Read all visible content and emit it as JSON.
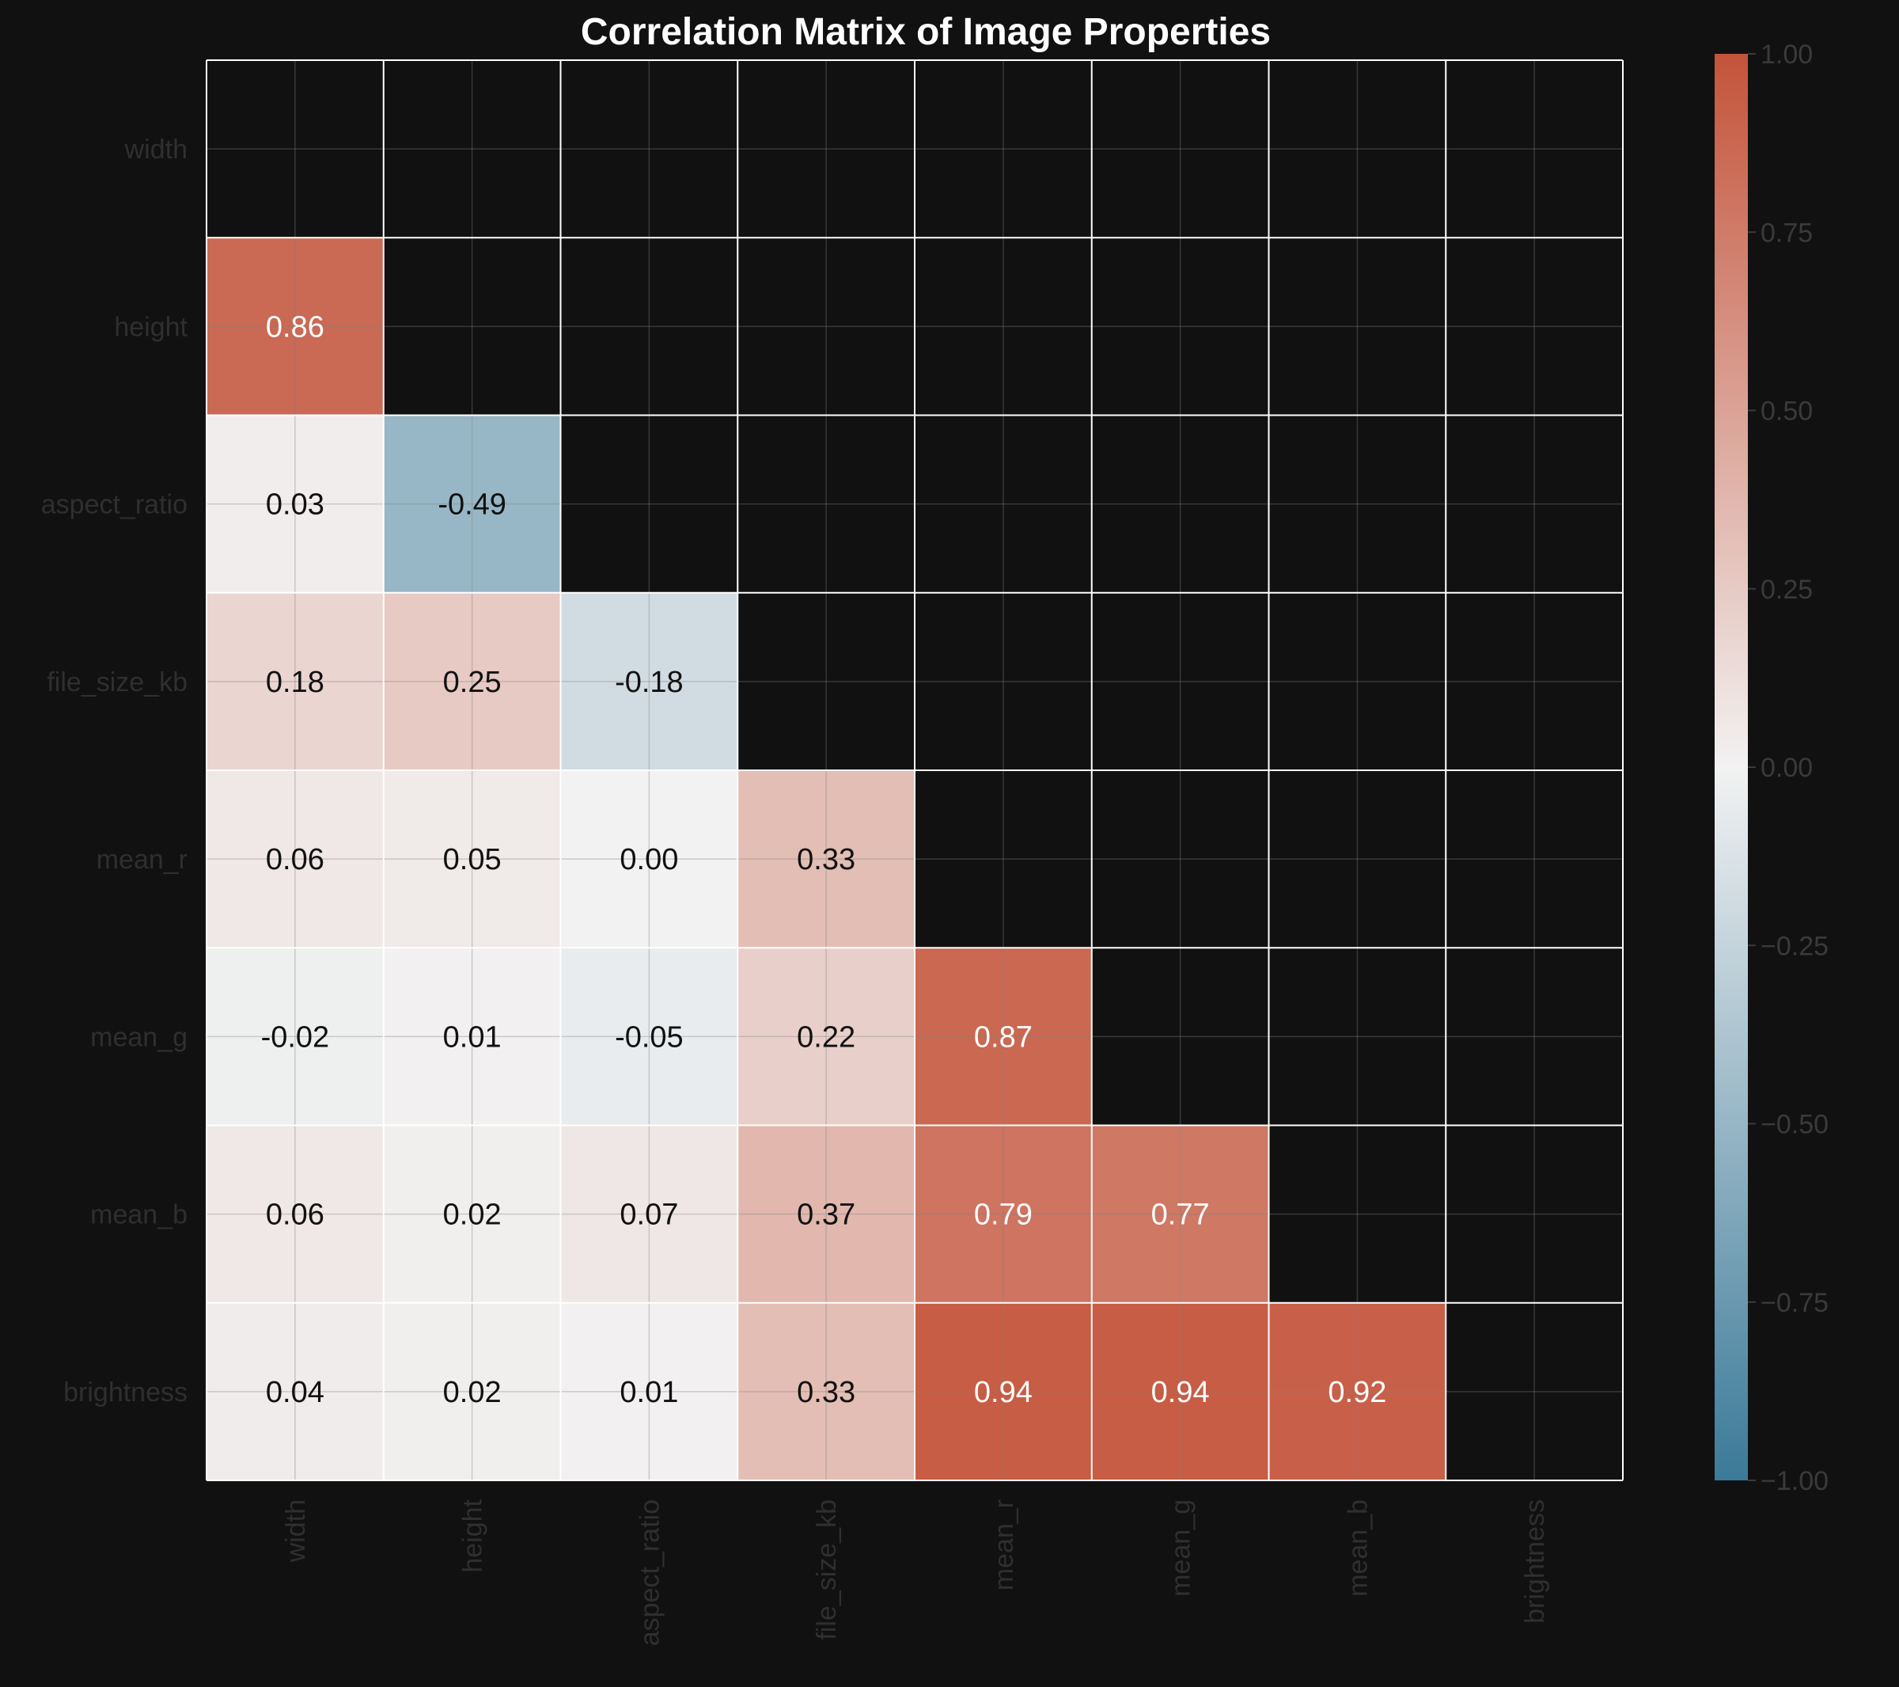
{
  "chart_data": {
    "type": "heatmap",
    "title": "Correlation Matrix of Image Properties",
    "xlabel": "",
    "ylabel": "",
    "mask": "upper-triangle-including-diagonal",
    "variables": [
      "width",
      "height",
      "aspect_ratio",
      "file_size_kb",
      "mean_r",
      "mean_g",
      "mean_b",
      "brightness"
    ],
    "matrix": [
      [
        null,
        null,
        null,
        null,
        null,
        null,
        null,
        null
      ],
      [
        0.86,
        null,
        null,
        null,
        null,
        null,
        null,
        null
      ],
      [
        0.03,
        -0.49,
        null,
        null,
        null,
        null,
        null,
        null
      ],
      [
        0.18,
        0.25,
        -0.18,
        null,
        null,
        null,
        null,
        null
      ],
      [
        0.06,
        0.05,
        0.0,
        0.33,
        null,
        null,
        null,
        null
      ],
      [
        -0.02,
        0.01,
        -0.05,
        0.22,
        0.87,
        null,
        null,
        null
      ],
      [
        0.06,
        0.02,
        0.07,
        0.37,
        0.79,
        0.77,
        null,
        null
      ],
      [
        0.04,
        0.02,
        0.01,
        0.33,
        0.94,
        0.94,
        0.92,
        null
      ]
    ],
    "cell_labels": [
      [
        "",
        "",
        "",
        "",
        "",
        "",
        "",
        ""
      ],
      [
        "0.86",
        "",
        "",
        "",
        "",
        "",
        "",
        ""
      ],
      [
        "0.03",
        "-0.49",
        "",
        "",
        "",
        "",
        "",
        ""
      ],
      [
        "0.18",
        "0.25",
        "-0.18",
        "",
        "",
        "",
        "",
        ""
      ],
      [
        "0.06",
        "0.05",
        "0.00",
        "0.33",
        "",
        "",
        "",
        ""
      ],
      [
        "-0.02",
        "0.01",
        "-0.05",
        "0.22",
        "0.87",
        "",
        "",
        ""
      ],
      [
        "0.06",
        "0.02",
        "0.07",
        "0.37",
        "0.79",
        "0.77",
        "",
        ""
      ],
      [
        "0.04",
        "0.02",
        "0.01",
        "0.33",
        "0.94",
        "0.94",
        "0.92",
        ""
      ]
    ],
    "value_range": [
      -1.0,
      1.0
    ],
    "colormap": {
      "negative": "#3b7a99",
      "center": "#f2f2f2",
      "positive": "#c4533a"
    },
    "colorbar": {
      "ticks": [
        -1.0,
        -0.75,
        -0.5,
        -0.25,
        0.0,
        0.25,
        0.5,
        0.75,
        1.0
      ],
      "tick_labels": [
        "−1.00",
        "−0.75",
        "−0.50",
        "−0.25",
        "0.00",
        "0.25",
        "0.50",
        "0.75",
        "1.00"
      ]
    },
    "grid": true,
    "background": "#111111"
  }
}
